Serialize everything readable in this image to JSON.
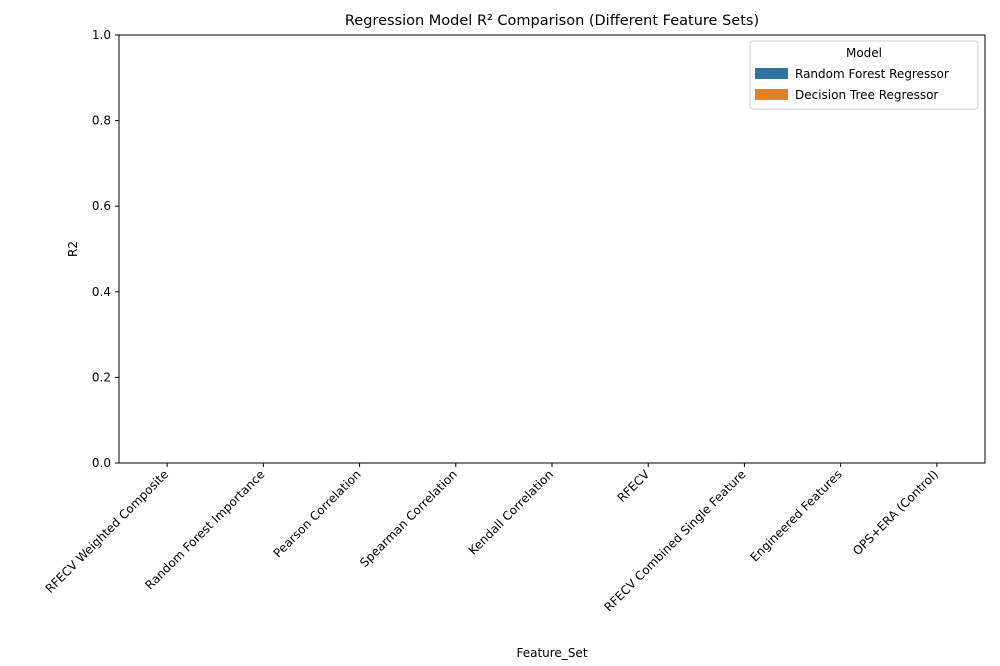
{
  "chart_data": {
    "type": "bar",
    "title": "Regression Model R² Comparison (Different Feature Sets)",
    "xlabel": "Feature_Set",
    "ylabel": "R2",
    "ylim": [
      0,
      1.0
    ],
    "yticks": [
      "0.0",
      "0.2",
      "0.4",
      "0.6",
      "0.8",
      "1.0"
    ],
    "ytick_values": [
      0,
      0.2,
      0.4,
      0.6,
      0.8,
      1.0
    ],
    "categories": [
      "RFECV Weighted Composite",
      "Random Forest Importance",
      "Pearson Correlation",
      "Spearman Correlation",
      "Kendall Correlation",
      "RFECV",
      "RFECV Combined Single Feature",
      "Engineered Features",
      "OPS+ERA (Control)"
    ],
    "series": [
      {
        "name": "Random Forest Regressor",
        "color": "#3274a1",
        "values": [
          0,
          0,
          0,
          0,
          0,
          0,
          0,
          0,
          0
        ]
      },
      {
        "name": "Decision Tree Regressor",
        "color": "#e1812c",
        "values": [
          0,
          0,
          0,
          0,
          0,
          0,
          0,
          0,
          0
        ]
      }
    ],
    "legend": {
      "title": "Model",
      "placement": "top-right"
    },
    "grid": false
  }
}
